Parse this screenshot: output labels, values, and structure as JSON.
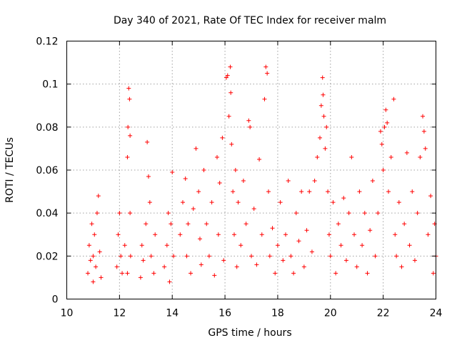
{
  "chart_data": {
    "type": "scatter",
    "title": "Day 340 of 2021, Rate Of TEC Index for receiver malm",
    "xlabel": "GPS time / hours",
    "ylabel": "ROTI / TECUs",
    "xlim": [
      10,
      24
    ],
    "ylim": [
      0,
      0.12
    ],
    "xticks": [
      "10",
      "12",
      "14",
      "16",
      "18",
      "20",
      "22",
      "24"
    ],
    "yticks": [
      "0",
      "0.02",
      "0.04",
      "0.06",
      "0.08",
      "0.1",
      "0.12"
    ],
    "grid": true,
    "marker": "plus",
    "color": "#ff0000",
    "series": [
      {
        "points": [
          [
            10.8,
            0.012
          ],
          [
            10.85,
            0.025
          ],
          [
            10.9,
            0.018
          ],
          [
            10.95,
            0.035
          ],
          [
            11.0,
            0.02
          ],
          [
            11.05,
            0.03
          ],
          [
            11.1,
            0.015
          ],
          [
            11.15,
            0.04
          ],
          [
            11.2,
            0.048
          ],
          [
            11.25,
            0.022
          ],
          [
            11.3,
            0.01
          ],
          [
            11.0,
            0.008
          ],
          [
            11.9,
            0.015
          ],
          [
            11.95,
            0.03
          ],
          [
            12.0,
            0.04
          ],
          [
            12.05,
            0.02
          ],
          [
            12.1,
            0.012
          ],
          [
            12.2,
            0.025
          ],
          [
            12.3,
            0.066
          ],
          [
            12.32,
            0.08
          ],
          [
            12.35,
            0.098
          ],
          [
            12.38,
            0.093
          ],
          [
            12.4,
            0.04
          ],
          [
            12.4,
            0.076
          ],
          [
            12.42,
            0.02
          ],
          [
            12.3,
            0.012
          ],
          [
            12.8,
            0.01
          ],
          [
            12.85,
            0.025
          ],
          [
            12.9,
            0.018
          ],
          [
            13.0,
            0.035
          ],
          [
            13.05,
            0.073
          ],
          [
            13.1,
            0.057
          ],
          [
            13.15,
            0.045
          ],
          [
            13.2,
            0.02
          ],
          [
            13.3,
            0.012
          ],
          [
            13.35,
            0.03
          ],
          [
            13.7,
            0.015
          ],
          [
            13.8,
            0.025
          ],
          [
            13.9,
            0.008
          ],
          [
            13.95,
            0.035
          ],
          [
            14.0,
            0.059
          ],
          [
            14.05,
            0.02
          ],
          [
            13.85,
            0.04
          ],
          [
            14.3,
            0.03
          ],
          [
            14.4,
            0.045
          ],
          [
            14.5,
            0.056
          ],
          [
            14.55,
            0.02
          ],
          [
            14.6,
            0.035
          ],
          [
            14.7,
            0.012
          ],
          [
            14.8,
            0.042
          ],
          [
            14.9,
            0.07
          ],
          [
            15.0,
            0.05
          ],
          [
            15.05,
            0.028
          ],
          [
            15.1,
            0.016
          ],
          [
            15.2,
            0.06
          ],
          [
            15.3,
            0.035
          ],
          [
            15.4,
            0.02
          ],
          [
            15.5,
            0.045
          ],
          [
            15.6,
            0.011
          ],
          [
            15.7,
            0.066
          ],
          [
            15.75,
            0.03
          ],
          [
            15.8,
            0.054
          ],
          [
            15.9,
            0.075
          ],
          [
            15.95,
            0.018
          ],
          [
            16.05,
            0.103
          ],
          [
            16.1,
            0.104
          ],
          [
            16.15,
            0.085
          ],
          [
            16.2,
            0.108
          ],
          [
            16.22,
            0.096
          ],
          [
            16.25,
            0.072
          ],
          [
            16.3,
            0.05
          ],
          [
            16.35,
            0.03
          ],
          [
            16.4,
            0.06
          ],
          [
            16.45,
            0.015
          ],
          [
            16.5,
            0.045
          ],
          [
            16.6,
            0.025
          ],
          [
            16.7,
            0.055
          ],
          [
            16.8,
            0.035
          ],
          [
            16.9,
            0.083
          ],
          [
            16.95,
            0.08
          ],
          [
            17.0,
            0.02
          ],
          [
            17.1,
            0.042
          ],
          [
            17.2,
            0.016
          ],
          [
            17.3,
            0.065
          ],
          [
            17.4,
            0.03
          ],
          [
            17.5,
            0.093
          ],
          [
            17.55,
            0.108
          ],
          [
            17.6,
            0.105
          ],
          [
            17.65,
            0.05
          ],
          [
            17.7,
            0.02
          ],
          [
            17.8,
            0.033
          ],
          [
            17.9,
            0.012
          ],
          [
            18.0,
            0.025
          ],
          [
            18.1,
            0.045
          ],
          [
            18.2,
            0.018
          ],
          [
            18.3,
            0.03
          ],
          [
            18.4,
            0.055
          ],
          [
            18.5,
            0.02
          ],
          [
            18.6,
            0.012
          ],
          [
            18.7,
            0.04
          ],
          [
            18.8,
            0.027
          ],
          [
            18.9,
            0.05
          ],
          [
            19.0,
            0.015
          ],
          [
            19.1,
            0.032
          ],
          [
            19.2,
            0.05
          ],
          [
            19.3,
            0.022
          ],
          [
            19.4,
            0.055
          ],
          [
            19.5,
            0.066
          ],
          [
            19.6,
            0.075
          ],
          [
            19.65,
            0.09
          ],
          [
            19.7,
            0.103
          ],
          [
            19.72,
            0.095
          ],
          [
            19.75,
            0.085
          ],
          [
            19.8,
            0.07
          ],
          [
            19.85,
            0.08
          ],
          [
            19.9,
            0.05
          ],
          [
            19.95,
            0.03
          ],
          [
            20.0,
            0.02
          ],
          [
            20.1,
            0.045
          ],
          [
            20.2,
            0.012
          ],
          [
            20.3,
            0.035
          ],
          [
            20.4,
            0.025
          ],
          [
            20.5,
            0.047
          ],
          [
            20.6,
            0.018
          ],
          [
            20.7,
            0.04
          ],
          [
            20.8,
            0.066
          ],
          [
            20.9,
            0.03
          ],
          [
            21.0,
            0.015
          ],
          [
            21.1,
            0.05
          ],
          [
            21.2,
            0.025
          ],
          [
            21.3,
            0.04
          ],
          [
            21.4,
            0.012
          ],
          [
            21.5,
            0.032
          ],
          [
            21.6,
            0.055
          ],
          [
            21.7,
            0.02
          ],
          [
            21.8,
            0.04
          ],
          [
            21.9,
            0.078
          ],
          [
            21.95,
            0.072
          ],
          [
            22.0,
            0.06
          ],
          [
            22.05,
            0.08
          ],
          [
            22.1,
            0.088
          ],
          [
            22.15,
            0.082
          ],
          [
            22.2,
            0.05
          ],
          [
            22.3,
            0.066
          ],
          [
            22.4,
            0.093
          ],
          [
            22.45,
            0.03
          ],
          [
            22.5,
            0.02
          ],
          [
            22.6,
            0.045
          ],
          [
            22.7,
            0.015
          ],
          [
            22.8,
            0.035
          ],
          [
            22.9,
            0.068
          ],
          [
            23.0,
            0.025
          ],
          [
            23.1,
            0.05
          ],
          [
            23.2,
            0.018
          ],
          [
            23.3,
            0.04
          ],
          [
            23.4,
            0.066
          ],
          [
            23.5,
            0.085
          ],
          [
            23.55,
            0.078
          ],
          [
            23.6,
            0.07
          ],
          [
            23.7,
            0.03
          ],
          [
            23.8,
            0.048
          ],
          [
            23.9,
            0.012
          ],
          [
            23.95,
            0.035
          ],
          [
            24.0,
            0.02
          ]
        ]
      }
    ]
  }
}
